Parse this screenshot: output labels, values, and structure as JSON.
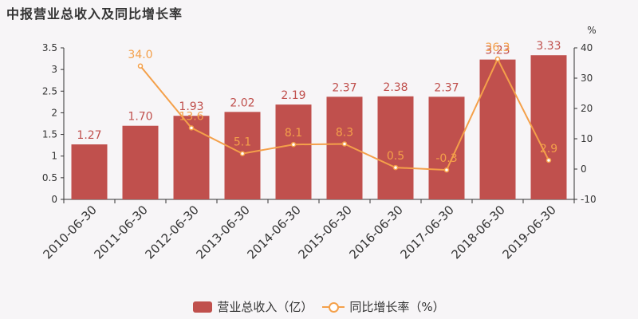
{
  "title": "中报营业总收入及同比增长率",
  "colors": {
    "bar": "#c0504d",
    "line": "#f4a04a",
    "bar_label": "#c0504d",
    "line_label": "#f4a04a",
    "axis_text": "#333333"
  },
  "chart_data": {
    "type": "bar",
    "title": "中报营业总收入及同比增长率",
    "categories": [
      "2010-06-30",
      "2011-06-30",
      "2012-06-30",
      "2013-06-30",
      "2014-06-30",
      "2015-06-30",
      "2016-06-30",
      "2017-06-30",
      "2018-06-30",
      "2019-06-30"
    ],
    "series": [
      {
        "name": "营业总收入（亿）",
        "type": "bar",
        "axis": "left",
        "values": [
          1.27,
          1.7,
          1.93,
          2.02,
          2.19,
          2.37,
          2.38,
          2.37,
          3.23,
          3.33
        ],
        "labels": [
          "1.27",
          "1.70",
          "1.93",
          "2.02",
          "2.19",
          "2.37",
          "2.38",
          "2.37",
          "3.23",
          "3.33"
        ]
      },
      {
        "name": "同比增长率（%）",
        "type": "line",
        "axis": "right",
        "values": [
          null,
          34.0,
          13.6,
          5.1,
          8.1,
          8.3,
          0.5,
          -0.3,
          36.3,
          2.9
        ],
        "labels": [
          "",
          "34.0",
          "13.6",
          "5.1",
          "8.1",
          "8.3",
          "0.5",
          "-0.3",
          "36.3",
          "2.9"
        ]
      }
    ],
    "y_left": {
      "ylim": [
        0,
        3.5
      ],
      "ticks": [
        "0",
        "0.5",
        "1",
        "1.5",
        "2",
        "2.5",
        "3",
        "3.5"
      ]
    },
    "y_right": {
      "unit": "%",
      "ylim": [
        -10,
        40
      ],
      "ticks": [
        "-10",
        "0",
        "10",
        "20",
        "30",
        "40"
      ]
    },
    "grid": false,
    "legend_position": "bottom-center"
  },
  "legend": {
    "bar_label": "营业总收入（亿）",
    "line_label": "同比增长率（%）"
  }
}
